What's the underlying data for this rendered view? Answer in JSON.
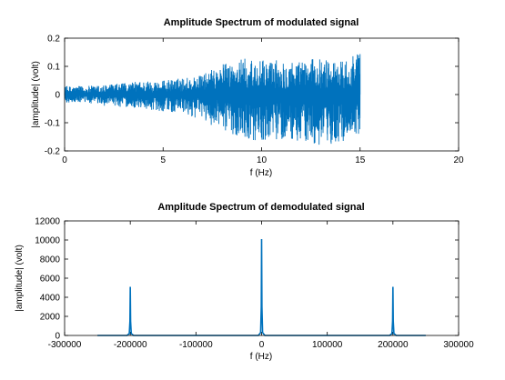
{
  "figure": {
    "background": "#ffffff",
    "line_color": "#0072bd"
  },
  "chart_data": [
    {
      "type": "line",
      "title": "Amplitude Spectrum of modulated signal",
      "xlabel": "f (Hz)",
      "ylabel": "|amplitude| (volt)",
      "xlim": [
        0,
        20
      ],
      "ylim": [
        -0.2,
        0.2
      ],
      "xticks": [
        0,
        5,
        10,
        15,
        20
      ],
      "xtick_labels": [
        "0",
        "5",
        "10",
        "15",
        "20"
      ],
      "yticks": [
        -0.2,
        -0.1,
        0,
        0.1,
        0.2
      ],
      "ytick_labels": [
        "-0.2",
        "-0.1",
        "0",
        "0.1",
        "0.2"
      ],
      "grid": false,
      "series": [
        {
          "x": [
            0,
            1,
            2,
            3,
            4,
            5,
            6,
            7,
            8,
            9,
            10,
            11,
            12,
            13,
            14,
            15
          ],
          "y_max": [
            0.03,
            0.03,
            0.035,
            0.04,
            0.05,
            0.05,
            0.06,
            0.07,
            0.11,
            0.13,
            0.12,
            0.13,
            0.12,
            0.13,
            0.12,
            0.16
          ],
          "y_min": [
            -0.03,
            -0.03,
            -0.04,
            -0.045,
            -0.05,
            -0.06,
            -0.07,
            -0.09,
            -0.13,
            -0.15,
            -0.17,
            -0.16,
            -0.17,
            -0.19,
            -0.17,
            -0.14
          ]
        }
      ]
    },
    {
      "type": "line",
      "title": "Amplitude Spectrum of demodulated signal",
      "xlabel": "f (Hz)",
      "ylabel": "|amplitude| (volt)",
      "xlim": [
        -300000,
        300000
      ],
      "ylim": [
        0,
        12000
      ],
      "xticks": [
        -300000,
        -200000,
        -100000,
        0,
        100000,
        200000,
        300000
      ],
      "xtick_labels": [
        "-300000",
        "-200000",
        "-100000",
        "0",
        "100000",
        "200000",
        "300000"
      ],
      "yticks": [
        0,
        2000,
        4000,
        6000,
        8000,
        10000,
        12000
      ],
      "ytick_labels": [
        "0",
        "2000",
        "4000",
        "6000",
        "8000",
        "10000",
        "12000"
      ],
      "grid": false,
      "series": [
        {
          "x": [
            -250000,
            -205000,
            -201500,
            -200500,
            -200000,
            -199500,
            -198500,
            -195000,
            -5000,
            -1500,
            -500,
            0,
            500,
            1500,
            5000,
            195000,
            198500,
            199500,
            200000,
            200500,
            201500,
            205000,
            250000
          ],
          "y": [
            0,
            0,
            200,
            1500,
            5100,
            1500,
            200,
            0,
            0,
            300,
            3000,
            10100,
            3000,
            300,
            0,
            0,
            200,
            1500,
            5100,
            1500,
            200,
            0,
            0
          ]
        }
      ]
    }
  ]
}
